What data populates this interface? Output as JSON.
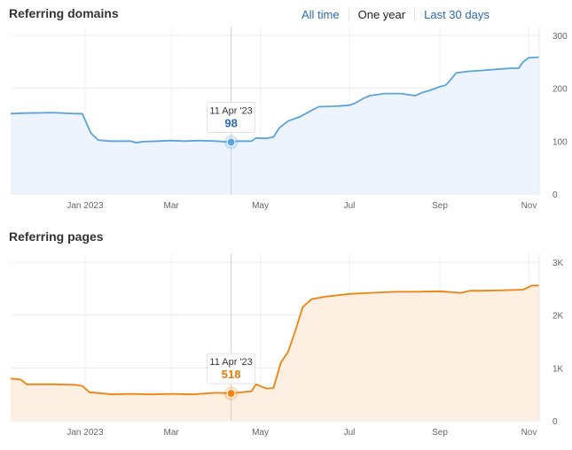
{
  "range_selector": {
    "options": [
      "All time",
      "One year",
      "Last 30 days"
    ],
    "selected": "One year"
  },
  "chart_data": [
    {
      "type": "area",
      "title": "Referring domains",
      "color": "#5ba3dc",
      "fill": "#eef4fd",
      "ylim": [
        0,
        300
      ],
      "yticks": [
        {
          "value": 0,
          "label": "0"
        },
        {
          "value": 100,
          "label": "100"
        },
        {
          "value": 200,
          "label": "200"
        },
        {
          "value": 300,
          "label": "300"
        }
      ],
      "xlim": [
        "2022-11-11",
        "2023-11-08"
      ],
      "xticks": [
        {
          "date": "2023-01-01",
          "label": "Jan 2023"
        },
        {
          "date": "2023-03-01",
          "label": "Mar"
        },
        {
          "date": "2023-05-01",
          "label": "May"
        },
        {
          "date": "2023-07-01",
          "label": "Jul"
        },
        {
          "date": "2023-09-01",
          "label": "Sep"
        },
        {
          "date": "2023-11-01",
          "label": "Nov"
        }
      ],
      "tooltip": {
        "date": "2023-04-11",
        "date_label": "11 Apr '23",
        "value": 98,
        "value_label": "98"
      },
      "points": [
        [
          "2022-11-11",
          152
        ],
        [
          "2022-11-20",
          153
        ],
        [
          "2022-12-10",
          154
        ],
        [
          "2022-12-25",
          152
        ],
        [
          "2022-12-30",
          152
        ],
        [
          "2023-01-05",
          115
        ],
        [
          "2023-01-10",
          102
        ],
        [
          "2023-01-18",
          100
        ],
        [
          "2023-02-01",
          100
        ],
        [
          "2023-02-05",
          97
        ],
        [
          "2023-02-10",
          99
        ],
        [
          "2023-02-20",
          100
        ],
        [
          "2023-03-01",
          101
        ],
        [
          "2023-03-10",
          100
        ],
        [
          "2023-03-20",
          101
        ],
        [
          "2023-04-01",
          100
        ],
        [
          "2023-04-11",
          98
        ],
        [
          "2023-04-15",
          100
        ],
        [
          "2023-04-25",
          100
        ],
        [
          "2023-04-28",
          106
        ],
        [
          "2023-05-05",
          105
        ],
        [
          "2023-05-10",
          108
        ],
        [
          "2023-05-14",
          125
        ],
        [
          "2023-05-20",
          138
        ],
        [
          "2023-05-28",
          146
        ],
        [
          "2023-06-05",
          158
        ],
        [
          "2023-06-10",
          165
        ],
        [
          "2023-06-20",
          166
        ],
        [
          "2023-07-01",
          168
        ],
        [
          "2023-07-05",
          172
        ],
        [
          "2023-07-10",
          180
        ],
        [
          "2023-07-15",
          186
        ],
        [
          "2023-07-25",
          190
        ],
        [
          "2023-08-05",
          190
        ],
        [
          "2023-08-15",
          186
        ],
        [
          "2023-08-20",
          192
        ],
        [
          "2023-08-25",
          196
        ],
        [
          "2023-09-01",
          203
        ],
        [
          "2023-09-05",
          206
        ],
        [
          "2023-09-08",
          215
        ],
        [
          "2023-09-12",
          229
        ],
        [
          "2023-09-20",
          232
        ],
        [
          "2023-10-01",
          234
        ],
        [
          "2023-10-10",
          236
        ],
        [
          "2023-10-20",
          238
        ],
        [
          "2023-10-25",
          238
        ],
        [
          "2023-10-28",
          250
        ],
        [
          "2023-11-01",
          258
        ],
        [
          "2023-11-08",
          259
        ]
      ]
    },
    {
      "type": "area",
      "title": "Referring pages",
      "color": "#f0820f",
      "fill": "#fdf0e2",
      "ylim": [
        0,
        3000
      ],
      "yticks": [
        {
          "value": 0,
          "label": "0"
        },
        {
          "value": 1000,
          "label": "1K"
        },
        {
          "value": 2000,
          "label": "2K"
        },
        {
          "value": 3000,
          "label": "3K"
        }
      ],
      "xlim": [
        "2022-11-11",
        "2023-11-08"
      ],
      "xticks": [
        {
          "date": "2023-01-01",
          "label": "Jan 2023"
        },
        {
          "date": "2023-03-01",
          "label": "Mar"
        },
        {
          "date": "2023-05-01",
          "label": "May"
        },
        {
          "date": "2023-07-01",
          "label": "Jul"
        },
        {
          "date": "2023-09-01",
          "label": "Sep"
        },
        {
          "date": "2023-11-01",
          "label": "Nov"
        }
      ],
      "tooltip": {
        "date": "2023-04-11",
        "date_label": "11 Apr '23",
        "value": 518,
        "value_label": "518"
      },
      "points": [
        [
          "2022-11-11",
          800
        ],
        [
          "2022-11-18",
          780
        ],
        [
          "2022-11-22",
          690
        ],
        [
          "2022-12-10",
          690
        ],
        [
          "2022-12-25",
          680
        ],
        [
          "2022-12-30",
          660
        ],
        [
          "2023-01-04",
          540
        ],
        [
          "2023-01-20",
          500
        ],
        [
          "2023-02-01",
          510
        ],
        [
          "2023-02-15",
          500
        ],
        [
          "2023-03-01",
          510
        ],
        [
          "2023-03-15",
          500
        ],
        [
          "2023-04-01",
          530
        ],
        [
          "2023-04-11",
          518
        ],
        [
          "2023-04-25",
          560
        ],
        [
          "2023-04-28",
          690
        ],
        [
          "2023-05-05",
          610
        ],
        [
          "2023-05-10",
          620
        ],
        [
          "2023-05-15",
          1100
        ],
        [
          "2023-05-20",
          1300
        ],
        [
          "2023-05-25",
          1700
        ],
        [
          "2023-05-30",
          2150
        ],
        [
          "2023-06-05",
          2300
        ],
        [
          "2023-06-15",
          2350
        ],
        [
          "2023-07-01",
          2400
        ],
        [
          "2023-07-15",
          2420
        ],
        [
          "2023-08-01",
          2440
        ],
        [
          "2023-08-15",
          2440
        ],
        [
          "2023-09-01",
          2450
        ],
        [
          "2023-09-15",
          2420
        ],
        [
          "2023-09-22",
          2460
        ],
        [
          "2023-10-01",
          2460
        ],
        [
          "2023-10-15",
          2470
        ],
        [
          "2023-10-28",
          2480
        ],
        [
          "2023-11-03",
          2560
        ],
        [
          "2023-11-08",
          2560
        ]
      ]
    }
  ]
}
